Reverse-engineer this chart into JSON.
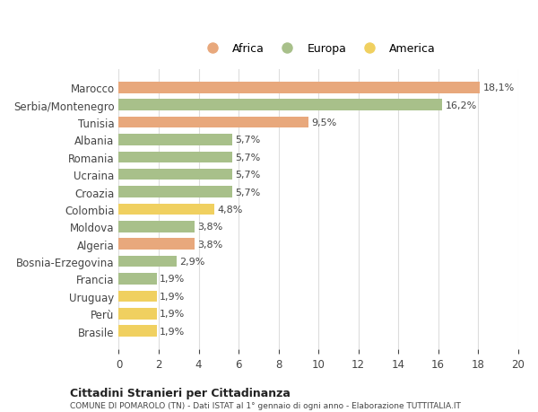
{
  "countries": [
    "Marocco",
    "Serbia/Montenegro",
    "Tunisia",
    "Albania",
    "Romania",
    "Ucraina",
    "Croazia",
    "Colombia",
    "Moldova",
    "Algeria",
    "Bosnia-Erzegovina",
    "Francia",
    "Uruguay",
    "Perù",
    "Brasile"
  ],
  "values": [
    18.1,
    16.2,
    9.5,
    5.7,
    5.7,
    5.7,
    5.7,
    4.8,
    3.8,
    3.8,
    2.9,
    1.9,
    1.9,
    1.9,
    1.9
  ],
  "labels": [
    "18,1%",
    "16,2%",
    "9,5%",
    "5,7%",
    "5,7%",
    "5,7%",
    "5,7%",
    "4,8%",
    "3,8%",
    "3,8%",
    "2,9%",
    "1,9%",
    "1,9%",
    "1,9%",
    "1,9%"
  ],
  "continents": [
    "Africa",
    "Europa",
    "Africa",
    "Europa",
    "Europa",
    "Europa",
    "Europa",
    "America",
    "Europa",
    "Africa",
    "Europa",
    "Europa",
    "America",
    "America",
    "America"
  ],
  "colors": {
    "Africa": "#E8A87C",
    "Europa": "#A8C08A",
    "America": "#F0D060"
  },
  "xlim": [
    0,
    20
  ],
  "xticks": [
    0,
    2,
    4,
    6,
    8,
    10,
    12,
    14,
    16,
    18,
    20
  ],
  "title1": "Cittadini Stranieri per Cittadinanza",
  "title2": "COMUNE DI POMAROLO (TN) - Dati ISTAT al 1° gennaio di ogni anno - Elaborazione TUTTITALIA.IT",
  "background_color": "#ffffff",
  "grid_color": "#dddddd"
}
